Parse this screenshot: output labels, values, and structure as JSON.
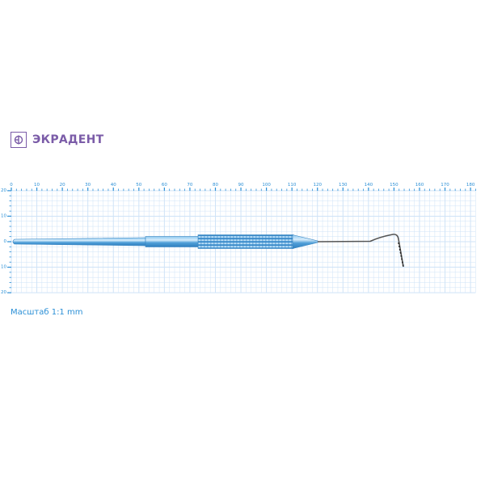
{
  "brand": {
    "name": "ЭКРАДЕНТ",
    "color": "#7b5ca8"
  },
  "scale_label": "Масштаб 1:1 mm",
  "ruler": {
    "x_labels": [
      "0",
      "10",
      "20",
      "30",
      "40",
      "50",
      "60",
      "70",
      "80",
      "90",
      "100",
      "110",
      "120",
      "130",
      "140",
      "150",
      "160",
      "170",
      "180"
    ],
    "y_labels": [
      "20",
      "10",
      "0",
      "10",
      "20"
    ],
    "unit": "mm",
    "color": "#2a8fd6",
    "grid_color": "#cfe3f7"
  },
  "instrument": {
    "type": "periodontal probe",
    "handle_color": "#5aaee6",
    "tip_color": "#555555"
  }
}
